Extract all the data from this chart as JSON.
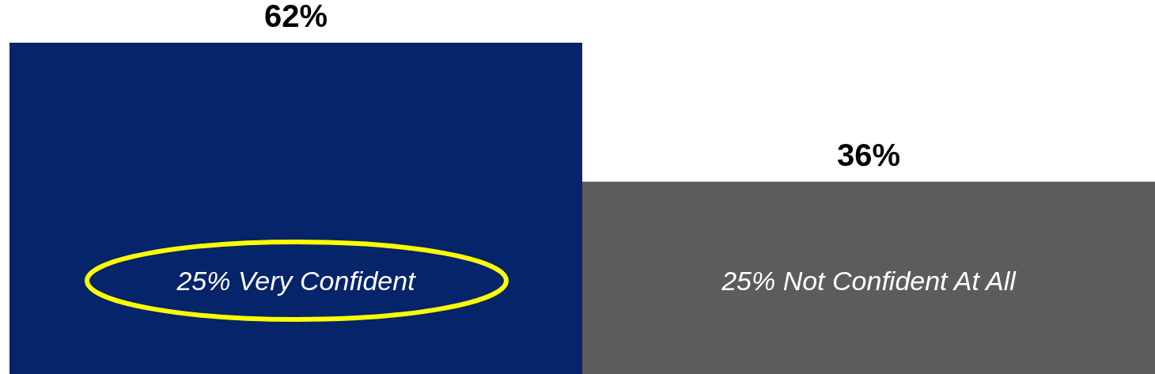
{
  "chart_data": {
    "type": "bar",
    "categories": [
      null,
      null
    ],
    "values": [
      62,
      36
    ],
    "colors": [
      "#06246a",
      "#5c5c5c"
    ],
    "value_labels": [
      "62%",
      "36%"
    ],
    "annotations": [
      "25% Very Confident",
      "25% Not Confident At All"
    ],
    "grid": false
  }
}
